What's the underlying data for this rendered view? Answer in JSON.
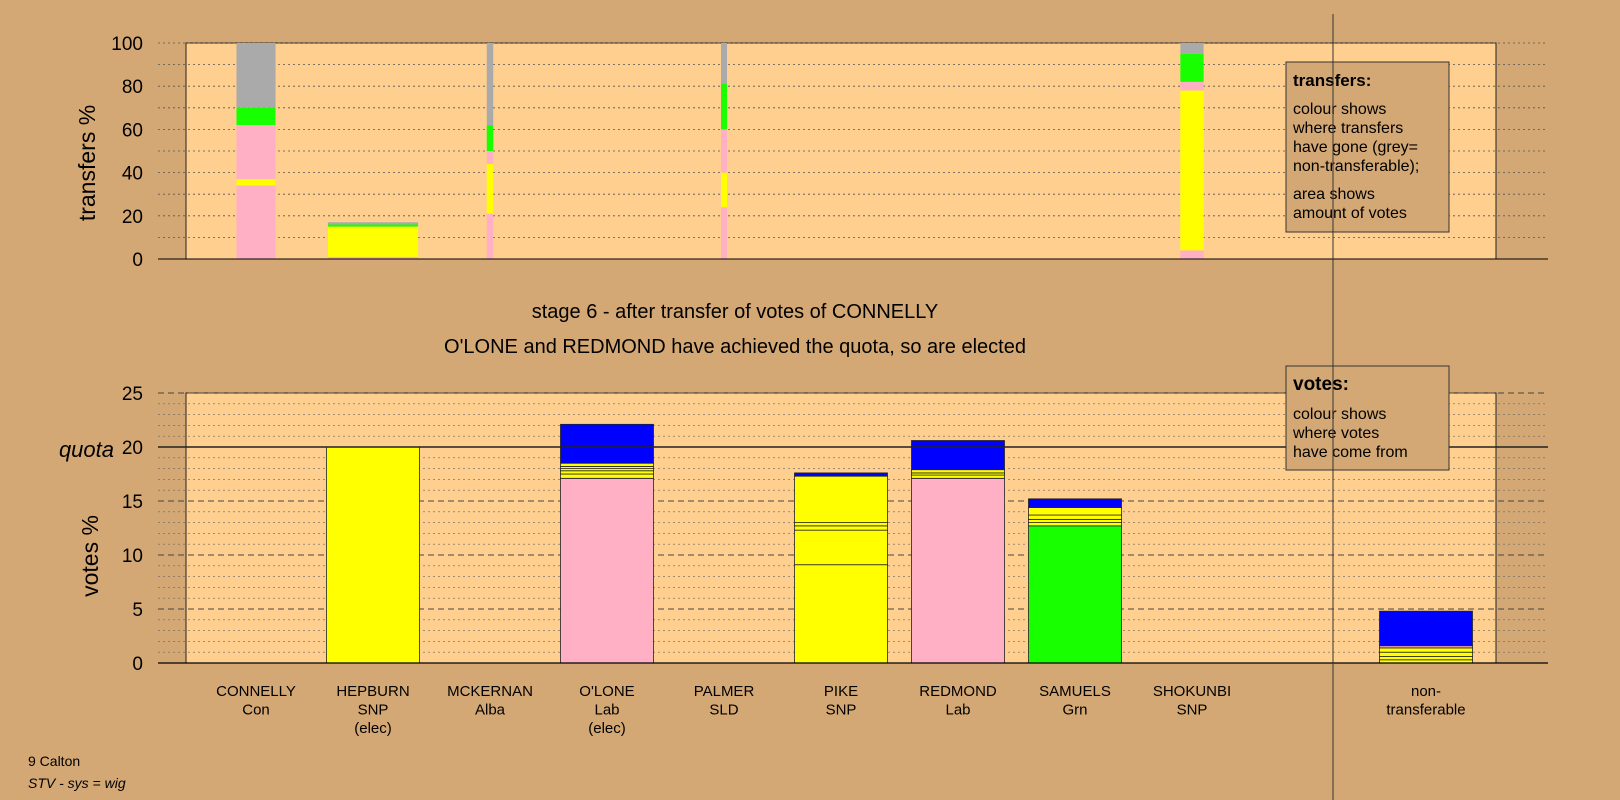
{
  "stage_title": "stage 6 - after transfer of votes of CONNELLY",
  "stage_subtitle": "O'LONE and REDMOND have achieved the quota, so are elected",
  "footer": {
    "ward": "9 Calton",
    "system": "STV - sys = wig"
  },
  "transfers_legend": {
    "heading": "transfers:",
    "lines1": [
      "colour shows",
      "where transfers",
      "have gone (grey=",
      "non-transferable);"
    ],
    "lines2": [
      "area shows",
      "amount of votes"
    ]
  },
  "votes_legend": {
    "heading": "votes:",
    "lines": [
      "colour shows",
      "where votes",
      "have come from"
    ]
  },
  "colors": {
    "Con": "#ffb0c4",
    "SNP": "#ffff00",
    "Alba": "#ffff00",
    "Lab": "#ffb0c4",
    "SLD": "#ffff00",
    "Grn": "#18ff00",
    "nontransferable": "#aaaaaa",
    "votes_origin_blue": "#0000ff",
    "background": "#d4a874",
    "plot_bg": "#ffcf8f"
  },
  "chart_data": [
    {
      "type": "bar",
      "name": "transfers",
      "ylabel": "transfers %",
      "ylim": [
        0,
        100
      ],
      "yticks": [
        0,
        20,
        40,
        60,
        80,
        100
      ],
      "categories": [
        "CONNELLY",
        "HEPBURN",
        "MCKERNAN",
        "O'LONE",
        "PALMER",
        "PIKE",
        "REDMOND",
        "SAMUELS",
        "SHOKUNBI",
        "non-transferable"
      ],
      "columns": [
        {
          "candidate": "CONNELLY",
          "width_share": 0.42,
          "segments": [
            {
              "from": 0,
              "to": 34,
              "color": "#ffb0c4"
            },
            {
              "from": 34,
              "to": 37,
              "color": "#ffff00"
            },
            {
              "from": 37,
              "to": 62,
              "color": "#ffb0c4"
            },
            {
              "from": 62,
              "to": 70,
              "color": "#18ff00"
            },
            {
              "from": 70,
              "to": 100,
              "color": "#aaaaaa"
            }
          ]
        },
        {
          "candidate": "HEPBURN",
          "width_share": 0.97,
          "segments": [
            {
              "from": 0,
              "to": 1,
              "color": "#ffb0c4"
            },
            {
              "from": 1,
              "to": 15,
              "color": "#ffff00"
            },
            {
              "from": 15,
              "to": 16,
              "color": "#18ff00"
            },
            {
              "from": 16,
              "to": 17,
              "color": "#aaaaaa"
            }
          ]
        },
        {
          "candidate": "MCKERNAN",
          "width_share": 0.07,
          "segments": [
            {
              "from": 0,
              "to": 21,
              "color": "#ffb0c4"
            },
            {
              "from": 21,
              "to": 44,
              "color": "#ffff00"
            },
            {
              "from": 44,
              "to": 50,
              "color": "#ffb0c4"
            },
            {
              "from": 50,
              "to": 62,
              "color": "#18ff00"
            },
            {
              "from": 62,
              "to": 100,
              "color": "#aaaaaa"
            }
          ]
        },
        {
          "candidate": "PALMER",
          "width_share": 0.05,
          "segments": [
            {
              "from": 0,
              "to": 24,
              "color": "#ffb0c4"
            },
            {
              "from": 24,
              "to": 40,
              "color": "#ffff00"
            },
            {
              "from": 40,
              "to": 60,
              "color": "#ffb0c4"
            },
            {
              "from": 60,
              "to": 81,
              "color": "#18ff00"
            },
            {
              "from": 81,
              "to": 100,
              "color": "#aaaaaa"
            }
          ]
        },
        {
          "candidate": "SHOKUNBI",
          "width_share": 0.25,
          "segments": [
            {
              "from": 0,
              "to": 4,
              "color": "#ffb0c4"
            },
            {
              "from": 4,
              "to": 78,
              "color": "#ffff00"
            },
            {
              "from": 78,
              "to": 82,
              "color": "#ffb0c4"
            },
            {
              "from": 82,
              "to": 95,
              "color": "#18ff00"
            },
            {
              "from": 95,
              "to": 100,
              "color": "#aaaaaa"
            }
          ]
        }
      ]
    },
    {
      "type": "bar",
      "name": "votes",
      "ylabel": "votes %",
      "ylim": [
        0,
        25
      ],
      "yticks": [
        0,
        5,
        10,
        15,
        20,
        25
      ],
      "quota": 20,
      "quota_label": "quota",
      "categories": [
        "CONNELLY",
        "HEPBURN",
        "MCKERNAN",
        "O'LONE",
        "PALMER",
        "PIKE",
        "REDMOND",
        "SAMUELS",
        "SHOKUNBI",
        "non-transferable"
      ],
      "candidates": [
        {
          "name": "CONNELLY",
          "party": "Con",
          "elected": "",
          "total": 0,
          "segments": []
        },
        {
          "name": "HEPBURN",
          "party": "SNP",
          "elected": "(elec)",
          "total": 20,
          "segments": [
            {
              "from": 0,
              "to": 20,
              "color": "#ffff00"
            }
          ]
        },
        {
          "name": "MCKERNAN",
          "party": "Alba",
          "elected": "",
          "total": 0,
          "segments": []
        },
        {
          "name": "O'LONE",
          "party": "Lab",
          "elected": "(elec)",
          "total": 22.1,
          "segments": [
            {
              "from": 0,
              "to": 17.1,
              "color": "#ffb0c4"
            },
            {
              "from": 17.1,
              "to": 17.5,
              "color": "#ffff00"
            },
            {
              "from": 17.5,
              "to": 17.8,
              "color": "#ffff00"
            },
            {
              "from": 17.8,
              "to": 18.0,
              "color": "#ffff00"
            },
            {
              "from": 18.0,
              "to": 18.2,
              "color": "#ffff00"
            },
            {
              "from": 18.2,
              "to": 18.5,
              "color": "#ffff00"
            },
            {
              "from": 18.5,
              "to": 22.1,
              "color": "#0000ff"
            }
          ]
        },
        {
          "name": "PALMER",
          "party": "SLD",
          "elected": "",
          "total": 0,
          "segments": []
        },
        {
          "name": "PIKE",
          "party": "SNP",
          "elected": "",
          "total": 17.6,
          "segments": [
            {
              "from": 0,
              "to": 9.1,
              "color": "#ffff00"
            },
            {
              "from": 9.1,
              "to": 12.3,
              "color": "#ffff00"
            },
            {
              "from": 12.3,
              "to": 12.7,
              "color": "#ffff00"
            },
            {
              "from": 12.7,
              "to": 13.0,
              "color": "#ffff00"
            },
            {
              "from": 13.0,
              "to": 17.3,
              "color": "#ffff00"
            },
            {
              "from": 17.3,
              "to": 17.6,
              "color": "#0000ff"
            }
          ]
        },
        {
          "name": "REDMOND",
          "party": "Lab",
          "elected": "",
          "total": 20.6,
          "segments": [
            {
              "from": 0,
              "to": 17.1,
              "color": "#ffb0c4"
            },
            {
              "from": 17.1,
              "to": 17.4,
              "color": "#ffff00"
            },
            {
              "from": 17.4,
              "to": 17.6,
              "color": "#ffff00"
            },
            {
              "from": 17.6,
              "to": 17.9,
              "color": "#ffff00"
            },
            {
              "from": 17.9,
              "to": 20.6,
              "color": "#0000ff"
            }
          ]
        },
        {
          "name": "SAMUELS",
          "party": "Grn",
          "elected": "",
          "total": 15.2,
          "segments": [
            {
              "from": 0,
              "to": 12.7,
              "color": "#18ff00"
            },
            {
              "from": 12.7,
              "to": 13.0,
              "color": "#ffff00"
            },
            {
              "from": 13.0,
              "to": 13.3,
              "color": "#ffff00"
            },
            {
              "from": 13.3,
              "to": 13.7,
              "color": "#ffff00"
            },
            {
              "from": 13.7,
              "to": 14.4,
              "color": "#ffff00"
            },
            {
              "from": 14.4,
              "to": 15.2,
              "color": "#0000ff"
            }
          ]
        },
        {
          "name": "SHOKUNBI",
          "party": "SNP",
          "elected": "",
          "total": 0,
          "segments": []
        },
        {
          "name": "non-",
          "party": "transferable",
          "elected": "",
          "total": 4.8,
          "segments": [
            {
              "from": 0,
              "to": 0.3,
              "color": "#ffff00"
            },
            {
              "from": 0.3,
              "to": 0.6,
              "color": "#ffff00"
            },
            {
              "from": 0.6,
              "to": 1.0,
              "color": "#ffff00"
            },
            {
              "from": 1.0,
              "to": 1.4,
              "color": "#ffff00"
            },
            {
              "from": 1.4,
              "to": 1.6,
              "color": "#ffb0c4"
            },
            {
              "from": 1.6,
              "to": 4.8,
              "color": "#0000ff"
            }
          ]
        }
      ]
    }
  ]
}
